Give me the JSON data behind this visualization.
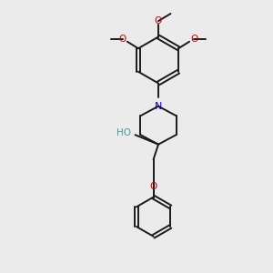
{
  "background_color": "#ebebeb",
  "bond_color": "#1a1a1a",
  "nitrogen_color": "#0000cc",
  "oxygen_color": "#cc0000",
  "ho_color": "#4a9a9a",
  "figsize": [
    3.0,
    3.0
  ],
  "dpi": 100,
  "xlim": [
    0,
    10
  ],
  "ylim": [
    0,
    10
  ]
}
